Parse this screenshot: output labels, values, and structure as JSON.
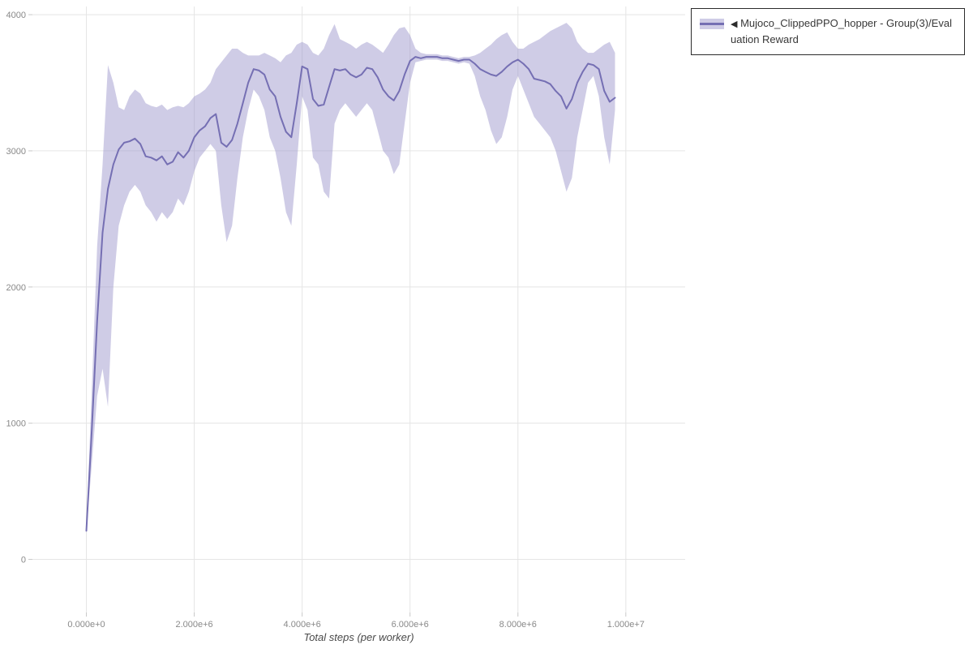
{
  "legend": {
    "collapse_icon": "◀",
    "label": "Mujoco_ClippedPPO_hopper - Group(3)/Evaluation Reward"
  },
  "chart_data": {
    "type": "line",
    "has_confidence_band": true,
    "title": "",
    "xlabel": "Total steps (per worker)",
    "ylabel": "",
    "xlim": [
      -1000000,
      11100000
    ],
    "ylim": [
      -390,
      4060
    ],
    "x_unit": 1000000,
    "grid": true,
    "legend_position": "top-right-outside",
    "xticks": {
      "values": [
        0,
        2000000,
        4000000,
        6000000,
        8000000,
        10000000
      ],
      "labels": [
        "0.000e+0",
        "2.000e+6",
        "4.000e+6",
        "6.000e+6",
        "8.000e+6",
        "1.000e+7"
      ]
    },
    "yticks": {
      "values": [
        0,
        1000,
        2000,
        3000,
        4000
      ],
      "labels": [
        "0",
        "1000",
        "2000",
        "3000",
        "4000"
      ]
    },
    "colors": {
      "line": "#756fb3",
      "band": "#958fc7",
      "band_opacity": 0.45,
      "grid": "#e5e5e5",
      "tick_mark": "#c8c8c8",
      "tick_label": "#898989",
      "axis_title": "#4a4a4a"
    },
    "series": [
      {
        "name": "Mujoco_ClippedPPO_hopper - Group(3)/Evaluation Reward",
        "x": [
          0,
          0.1,
          0.2,
          0.3,
          0.4,
          0.5,
          0.6,
          0.7,
          0.8,
          0.9,
          1,
          1.1,
          1.2,
          1.3,
          1.4,
          1.5,
          1.6,
          1.7,
          1.8,
          1.9,
          2,
          2.1,
          2.2,
          2.3,
          2.4,
          2.5,
          2.6,
          2.7,
          2.8,
          2.9,
          3,
          3.1,
          3.2,
          3.3,
          3.4,
          3.5,
          3.6,
          3.7,
          3.8,
          3.9,
          4,
          4.1,
          4.2,
          4.3,
          4.4,
          4.5,
          4.6,
          4.7,
          4.8,
          4.9,
          5,
          5.1,
          5.2,
          5.3,
          5.4,
          5.5,
          5.6,
          5.7,
          5.8,
          5.9,
          6,
          6.1,
          6.2,
          6.3,
          6.4,
          6.5,
          6.6,
          6.7,
          6.8,
          6.9,
          7,
          7.1,
          7.2,
          7.3,
          7.4,
          7.5,
          7.6,
          7.7,
          7.8,
          7.9,
          8,
          8.1,
          8.2,
          8.3,
          8.4,
          8.5,
          8.6,
          8.7,
          8.8,
          8.9,
          9,
          9.1,
          9.2,
          9.3,
          9.4,
          9.5,
          9.6,
          9.7,
          9.8
        ],
        "mean": [
          210,
          950,
          1750,
          2400,
          2720,
          2900,
          3010,
          3060,
          3070,
          3090,
          3050,
          2960,
          2950,
          2930,
          2960,
          2900,
          2920,
          2990,
          2950,
          3000,
          3100,
          3150,
          3180,
          3240,
          3270,
          3060,
          3030,
          3080,
          3200,
          3350,
          3500,
          3600,
          3590,
          3560,
          3450,
          3400,
          3250,
          3140,
          3100,
          3350,
          3620,
          3600,
          3380,
          3330,
          3340,
          3470,
          3600,
          3590,
          3600,
          3560,
          3540,
          3560,
          3610,
          3600,
          3540,
          3450,
          3400,
          3370,
          3440,
          3560,
          3660,
          3690,
          3680,
          3690,
          3690,
          3690,
          3680,
          3680,
          3670,
          3660,
          3670,
          3670,
          3640,
          3600,
          3580,
          3560,
          3550,
          3580,
          3620,
          3650,
          3670,
          3640,
          3600,
          3530,
          3520,
          3510,
          3490,
          3440,
          3400,
          3310,
          3380,
          3500,
          3580,
          3640,
          3630,
          3600,
          3440,
          3360,
          3390
        ],
        "lower": [
          190,
          700,
          1200,
          1400,
          1120,
          2000,
          2450,
          2600,
          2700,
          2750,
          2700,
          2600,
          2550,
          2480,
          2550,
          2500,
          2550,
          2650,
          2600,
          2700,
          2850,
          2950,
          3000,
          3050,
          3000,
          2600,
          2330,
          2450,
          2800,
          3100,
          3300,
          3450,
          3400,
          3300,
          3100,
          3000,
          2800,
          2550,
          2450,
          2900,
          3400,
          3300,
          2950,
          2900,
          2700,
          2650,
          3200,
          3300,
          3350,
          3300,
          3250,
          3300,
          3350,
          3300,
          3150,
          3000,
          2950,
          2830,
          2900,
          3200,
          3500,
          3650,
          3660,
          3670,
          3670,
          3670,
          3660,
          3660,
          3650,
          3640,
          3650,
          3640,
          3550,
          3400,
          3300,
          3150,
          3050,
          3100,
          3250,
          3450,
          3550,
          3450,
          3350,
          3250,
          3200,
          3150,
          3100,
          3000,
          2850,
          2700,
          2800,
          3100,
          3300,
          3500,
          3550,
          3400,
          3100,
          2900,
          3300
        ],
        "upper": [
          230,
          1250,
          2300,
          2900,
          3630,
          3500,
          3320,
          3300,
          3400,
          3450,
          3420,
          3350,
          3330,
          3320,
          3340,
          3300,
          3320,
          3330,
          3320,
          3350,
          3400,
          3420,
          3450,
          3500,
          3600,
          3650,
          3700,
          3750,
          3750,
          3720,
          3700,
          3700,
          3700,
          3720,
          3700,
          3680,
          3650,
          3700,
          3720,
          3780,
          3800,
          3780,
          3720,
          3700,
          3750,
          3850,
          3930,
          3820,
          3800,
          3780,
          3750,
          3780,
          3800,
          3780,
          3750,
          3720,
          3780,
          3850,
          3900,
          3910,
          3850,
          3750,
          3720,
          3710,
          3710,
          3710,
          3700,
          3700,
          3690,
          3680,
          3690,
          3690,
          3700,
          3720,
          3750,
          3780,
          3820,
          3850,
          3870,
          3800,
          3750,
          3750,
          3780,
          3800,
          3820,
          3850,
          3880,
          3900,
          3920,
          3940,
          3900,
          3800,
          3750,
          3720,
          3720,
          3750,
          3780,
          3800,
          3720
        ]
      }
    ]
  }
}
